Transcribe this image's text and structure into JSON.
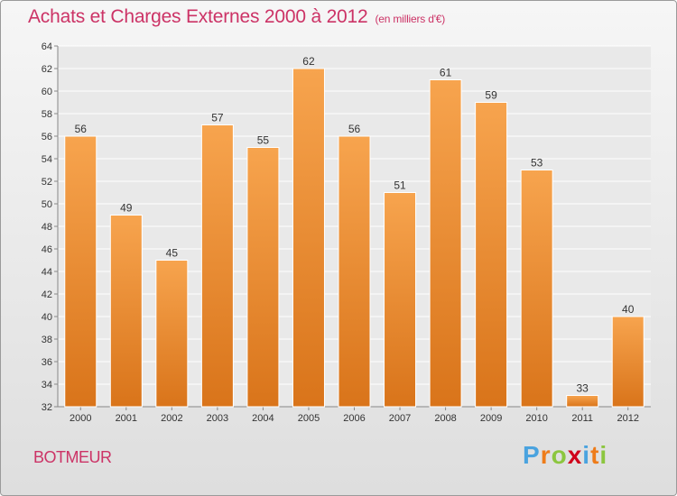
{
  "header": {
    "title": "Achats et Charges Externes 2000 à 2012",
    "unit": "(en milliers d'€)"
  },
  "footer": {
    "commune": "BOTMEUR",
    "logo": [
      "P",
      "r",
      "o",
      "x",
      "i",
      "t",
      "i"
    ]
  },
  "colors": {
    "bar_light": "#f7a44e",
    "bar_dark": "#d9741a",
    "title": "#cc3366",
    "logo": [
      "#4aa3df",
      "#ee7c1a",
      "#8cc63f",
      "#d0021b",
      "#4aa3df",
      "#ee7c1a",
      "#8cc63f"
    ]
  },
  "chart_data": {
    "type": "bar",
    "title": "Achats et Charges Externes 2000 à 2012",
    "categories": [
      "2000",
      "2001",
      "2002",
      "2003",
      "2004",
      "2005",
      "2006",
      "2007",
      "2008",
      "2009",
      "2010",
      "2011",
      "2012"
    ],
    "values": [
      56,
      49,
      45,
      57,
      55,
      62,
      56,
      51,
      61,
      59,
      53,
      33,
      40
    ],
    "ylim": [
      32,
      64
    ],
    "yticks": [
      32,
      34,
      36,
      38,
      40,
      42,
      44,
      46,
      48,
      50,
      52,
      54,
      56,
      58,
      60,
      62,
      64
    ],
    "grid": true,
    "xlabel": "",
    "ylabel": ""
  }
}
